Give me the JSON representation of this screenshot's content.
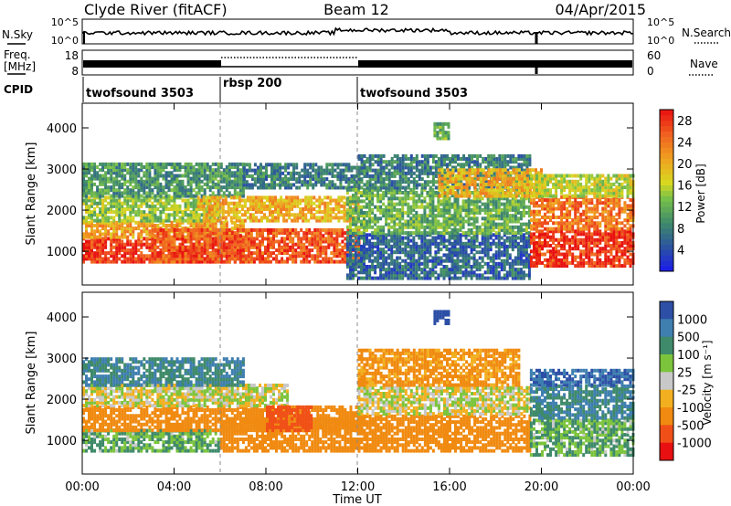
{
  "header": {
    "station": "Clyde River (fitACF)",
    "beam": "Beam 12",
    "date": "04/Apr/2015"
  },
  "top_panels": {
    "nsky_label": "N.Sky",
    "nsearch_label": "N.Search",
    "freq_label_line1": "Freq.",
    "freq_label_line2": "[MHz]",
    "nave_label": "Nave",
    "cpid_label": "CPID",
    "noise_ticks_left": [
      "10^5",
      "10^0"
    ],
    "noise_ticks_right": [
      "10^5",
      "10^0"
    ],
    "freq_ticks": [
      "18",
      "8"
    ],
    "nave_ticks": [
      "60",
      "0"
    ]
  },
  "cpid_segments": [
    {
      "label": "twofsound 3503",
      "start_hour": 0,
      "end_hour": 6
    },
    {
      "label": "rbsp 200",
      "start_hour": 6,
      "end_hour": 12
    },
    {
      "label": "twofsound 3503",
      "start_hour": 12,
      "end_hour": 24
    }
  ],
  "x_axis": {
    "label": "Time UT",
    "ticks": [
      "00:00",
      "04:00",
      "08:00",
      "12:00",
      "16:00",
      "20:00",
      "00:00"
    ],
    "range_hours": [
      0,
      24
    ]
  },
  "panels": [
    {
      "ylabel": "Slant Range [km]",
      "yticks": [
        "1000",
        "2000",
        "3000",
        "4000"
      ],
      "colorbar_label": "Power [dB]",
      "colorbar_ticks": [
        "4",
        "8",
        "12",
        "16",
        "20",
        "24",
        "28"
      ]
    },
    {
      "ylabel": "Slant Range [km]",
      "yticks": [
        "1000",
        "2000",
        "3000",
        "4000"
      ],
      "colorbar_label": "Velocity [m s⁻¹]",
      "colorbar_ticks": [
        "1000",
        "500",
        "100",
        "25",
        "-25",
        "-100",
        "-500",
        "-1000"
      ]
    }
  ],
  "chart_data": [
    {
      "type": "heatmap",
      "title": "Clyde River (fitACF)",
      "subtitle": "Beam 12",
      "xlabel": "Time UT",
      "ylabel": "Slant Range [km]",
      "xlim_hours": [
        0,
        24
      ],
      "ylim_km": [
        180,
        4600
      ],
      "colorbar": {
        "label": "Power [dB]",
        "range": [
          0,
          30
        ],
        "ticks": [
          4,
          8,
          12,
          16,
          20,
          24,
          28
        ]
      },
      "bands": [
        {
          "t_start_h": 0.0,
          "t_end_h": 7.0,
          "range_km": [
            700,
            1300
          ],
          "value_db": 28
        },
        {
          "t_start_h": 0.0,
          "t_end_h": 7.0,
          "range_km": [
            1300,
            1700
          ],
          "value_db": 21
        },
        {
          "t_start_h": 0.0,
          "t_end_h": 6.0,
          "range_km": [
            1700,
            2300
          ],
          "value_db": 14
        },
        {
          "t_start_h": 0.0,
          "t_end_h": 7.0,
          "range_km": [
            2300,
            3100
          ],
          "value_db": 10
        },
        {
          "t_start_h": 3.0,
          "t_end_h": 12.0,
          "range_km": [
            700,
            1500
          ],
          "value_db": 26
        },
        {
          "t_start_h": 5.0,
          "t_end_h": 12.0,
          "range_km": [
            1700,
            2300
          ],
          "value_db": 20
        },
        {
          "t_start_h": 7.0,
          "t_end_h": 12.0,
          "range_km": [
            2500,
            3100
          ],
          "value_db": 8
        },
        {
          "t_start_h": 11.5,
          "t_end_h": 19.5,
          "range_km": [
            300,
            1400
          ],
          "value_db": 6
        },
        {
          "t_start_h": 11.5,
          "t_end_h": 19.5,
          "range_km": [
            1400,
            2500
          ],
          "value_db": 12
        },
        {
          "t_start_h": 12.0,
          "t_end_h": 19.5,
          "range_km": [
            2500,
            3300
          ],
          "value_db": 8
        },
        {
          "t_start_h": 15.5,
          "t_end_h": 20.0,
          "range_km": [
            2300,
            3000
          ],
          "value_db": 20
        },
        {
          "t_start_h": 19.5,
          "t_end_h": 24.0,
          "range_km": [
            600,
            1500
          ],
          "value_db": 28
        },
        {
          "t_start_h": 19.5,
          "t_end_h": 24.0,
          "range_km": [
            1500,
            2300
          ],
          "value_db": 24
        },
        {
          "t_start_h": 19.5,
          "t_end_h": 24.0,
          "range_km": [
            2300,
            2800
          ],
          "value_db": 16
        },
        {
          "t_start_h": 15.3,
          "t_end_h": 15.9,
          "range_km": [
            3700,
            4100
          ],
          "value_db": 12
        }
      ]
    },
    {
      "type": "heatmap",
      "xlabel": "Time UT",
      "ylabel": "Slant Range [km]",
      "xlim_hours": [
        0,
        24
      ],
      "ylim_km": [
        180,
        4600
      ],
      "colorbar": {
        "label": "Velocity [m s⁻¹]",
        "range": [
          -1000,
          1000
        ],
        "ticks": [
          1000,
          500,
          100,
          25,
          -25,
          -100,
          -500,
          -1000
        ]
      },
      "bands": [
        {
          "t_start_h": 0.0,
          "t_end_h": 6.0,
          "range_km": [
            700,
            1200
          ],
          "value_ms": 100
        },
        {
          "t_start_h": 0.0,
          "t_end_h": 12.0,
          "range_km": [
            1200,
            1800
          ],
          "value_ms": -200
        },
        {
          "t_start_h": 0.0,
          "t_end_h": 9.0,
          "range_km": [
            1800,
            2300
          ],
          "value_ms": 0
        },
        {
          "t_start_h": 0.0,
          "t_end_h": 7.0,
          "range_km": [
            2300,
            3000
          ],
          "value_ms": 300
        },
        {
          "t_start_h": 6.0,
          "t_end_h": 12.0,
          "range_km": [
            700,
            1500
          ],
          "value_ms": -300
        },
        {
          "t_start_h": 8.0,
          "t_end_h": 10.0,
          "range_km": [
            1200,
            1800
          ],
          "value_ms": -700
        },
        {
          "t_start_h": 12.0,
          "t_end_h": 19.5,
          "range_km": [
            700,
            1600
          ],
          "value_ms": -250
        },
        {
          "t_start_h": 12.0,
          "t_end_h": 19.5,
          "range_km": [
            1600,
            2300
          ],
          "value_ms": 0
        },
        {
          "t_start_h": 12.0,
          "t_end_h": 19.0,
          "range_km": [
            2300,
            3200
          ],
          "value_ms": -150
        },
        {
          "t_start_h": 19.5,
          "t_end_h": 24.0,
          "range_km": [
            600,
            1500
          ],
          "value_ms": 100
        },
        {
          "t_start_h": 19.5,
          "t_end_h": 24.0,
          "range_km": [
            1500,
            2300
          ],
          "value_ms": 300
        },
        {
          "t_start_h": 19.5,
          "t_end_h": 24.0,
          "range_km": [
            2300,
            2700
          ],
          "value_ms": 700
        },
        {
          "t_start_h": 15.3,
          "t_end_h": 15.9,
          "range_km": [
            3800,
            4100
          ],
          "value_ms": 800
        }
      ]
    }
  ]
}
